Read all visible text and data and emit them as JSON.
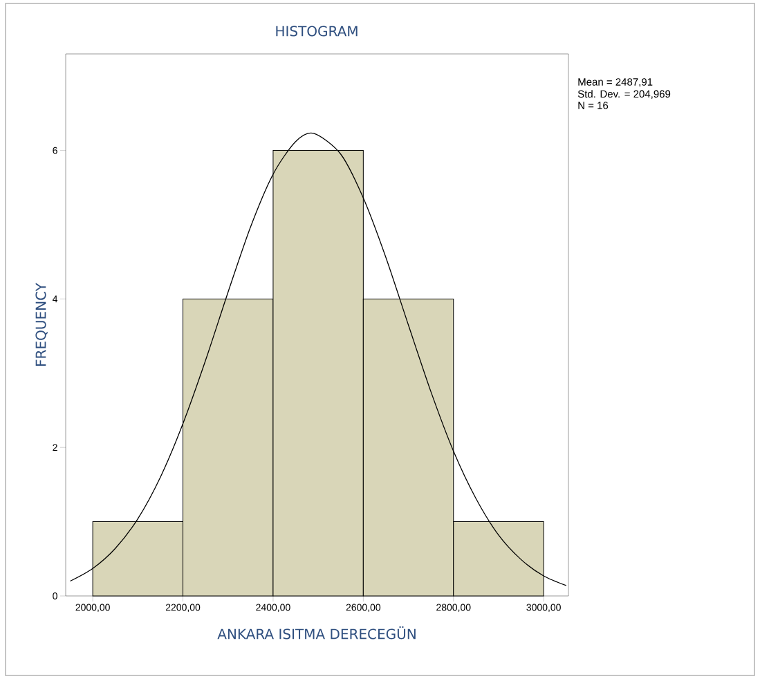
{
  "chart_data": {
    "type": "histogram",
    "title": "HISTOGRAM",
    "xlabel": "ANKARA ISITMA DERECEGÜN",
    "ylabel": "FREQUENCY",
    "bins": [
      2000,
      2200,
      2400,
      2600,
      2800,
      3000
    ],
    "values": [
      1,
      4,
      6,
      4,
      1
    ],
    "color": "#d9d6b8",
    "series": [
      {
        "type": "line",
        "color": "#000000",
        "x": [
          1950,
          2000,
          2050,
          2100,
          2150,
          2200,
          2250,
          2300,
          2350,
          2400,
          2450,
          2490,
          2550,
          2600,
          2650,
          2700,
          2750,
          2800,
          2850,
          2900,
          2950,
          3000,
          3050
        ],
        "values": [
          0.2,
          0.37,
          0.64,
          1.04,
          1.6,
          2.32,
          3.17,
          4.09,
          4.97,
          5.68,
          6.12,
          6.23,
          5.95,
          5.36,
          4.56,
          3.65,
          2.75,
          1.95,
          1.31,
          0.82,
          0.49,
          0.27,
          0.14
        ]
      }
    ],
    "xlim": [
      1940,
      3055
    ],
    "ylim": [
      0,
      7.3
    ],
    "xticks": [
      {
        "value": 2000,
        "label": "2000,00"
      },
      {
        "value": 2200,
        "label": "2200,00"
      },
      {
        "value": 2400,
        "label": "2400,00"
      },
      {
        "value": 2600,
        "label": "2600,00"
      },
      {
        "value": 2800,
        "label": "2800,00"
      },
      {
        "value": 3000,
        "label": "3000,00"
      }
    ],
    "yticks": [
      0,
      2,
      4,
      6
    ],
    "annotations": [
      "Mean = 2487,91",
      "Std. Dev. = 204,969",
      "N = 16"
    ]
  }
}
